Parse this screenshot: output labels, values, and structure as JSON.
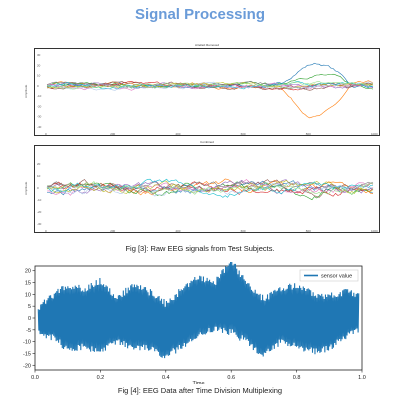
{
  "page": {
    "title": "Signal Processing"
  },
  "figure3": {
    "caption": "Fig [3]: Raw EEG signals from Test Subjects.",
    "top_title": "Artefact Removed",
    "bottom_title": "Combined",
    "ylabel": "Amplitude"
  },
  "figure4": {
    "caption": "Fig [4]: EEG Data after Time Division Multiplexing",
    "legend": "sensor value",
    "xlabel": "Time"
  },
  "colors": {
    "title": "#6a9bd8",
    "series": [
      "#1f77b4",
      "#ff7f0e",
      "#2ca02c",
      "#d62728",
      "#9467bd",
      "#8c564b",
      "#e377c2",
      "#7f7f7f",
      "#bcbd22",
      "#17becf",
      "#aec7e8",
      "#98df8a"
    ]
  },
  "chart_data": [
    {
      "type": "line",
      "title": "Artefact Removed",
      "ylabel": "Amplitude",
      "ylim": [
        -40,
        30
      ],
      "yticks": [
        "-40",
        "-30",
        "-20",
        "-10",
        "0",
        "10",
        "20",
        "30"
      ],
      "series_count": 12,
      "grid": false
    },
    {
      "type": "line",
      "title": "Combined",
      "ylabel": "Amplitude",
      "ylim": [
        -30,
        30
      ],
      "yticks": [
        "-30",
        "-20",
        "-10",
        "0",
        "10",
        "20"
      ],
      "series_count": 12,
      "grid": false
    },
    {
      "type": "area",
      "title": "",
      "xlabel": "Time",
      "ylabel": "",
      "xlim": [
        0.0,
        1.0
      ],
      "ylim": [
        -22,
        22
      ],
      "xticks": [
        "0.0",
        "0.2",
        "0.4",
        "0.6",
        "0.8",
        "1.0"
      ],
      "yticks": [
        "20",
        "15",
        "10",
        "5",
        "0",
        "-5",
        "-10",
        "-15",
        "-20"
      ],
      "legend": "top-right",
      "series": [
        {
          "name": "sensor value",
          "color": "#1f77b4",
          "x": [
            0.0,
            0.05,
            0.1,
            0.15,
            0.2,
            0.25,
            0.3,
            0.35,
            0.4,
            0.45,
            0.5,
            0.55,
            0.6,
            0.65,
            0.7,
            0.75,
            0.8,
            0.85,
            0.9,
            0.95,
            1.0
          ],
          "upper": [
            3,
            9,
            14,
            12,
            16,
            8,
            14,
            11,
            6,
            12,
            17,
            15,
            24,
            14,
            8,
            12,
            14,
            10,
            9,
            11,
            9
          ],
          "lower": [
            -6,
            -8,
            -13,
            -12,
            -14,
            -10,
            -12,
            -13,
            -16,
            -12,
            -8,
            -4,
            -6,
            -10,
            -16,
            -10,
            -12,
            -14,
            -13,
            -8,
            -5
          ]
        }
      ]
    }
  ]
}
